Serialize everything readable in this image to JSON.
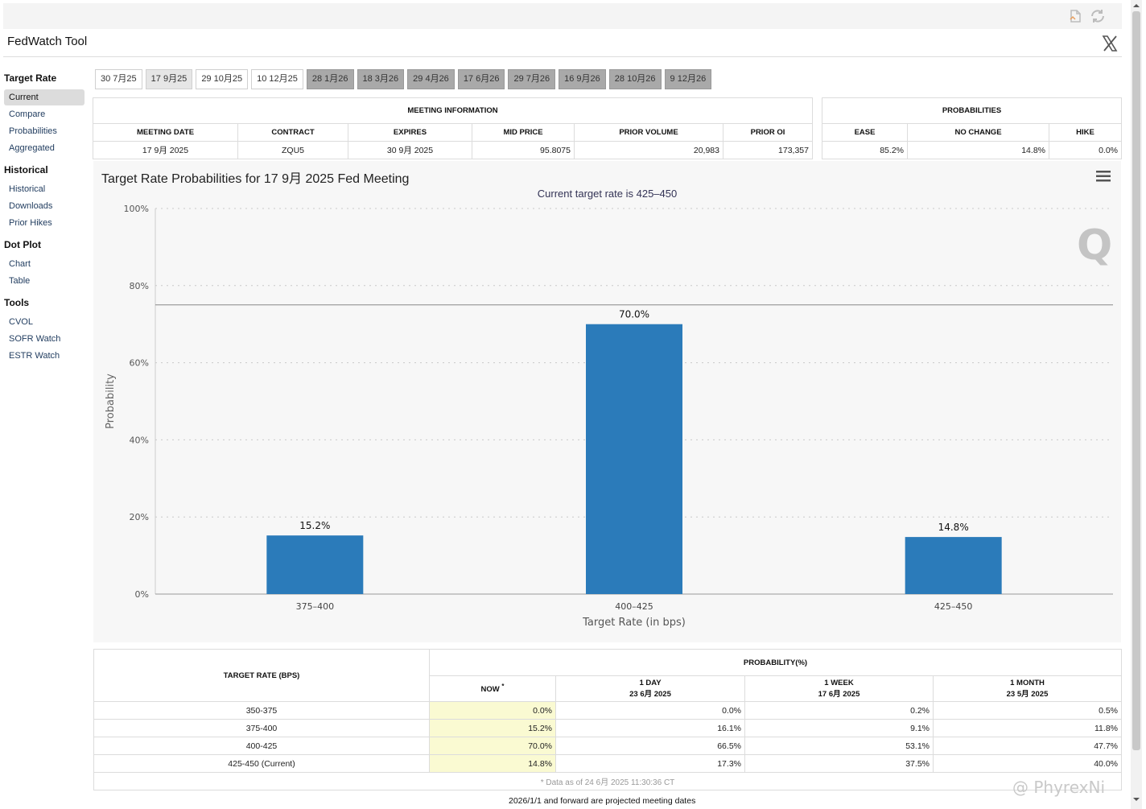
{
  "app": {
    "title": "FedWatch Tool"
  },
  "sidebar": {
    "groups": [
      {
        "title": "Target Rate",
        "items": [
          "Current",
          "Compare",
          "Probabilities",
          "Aggregated"
        ]
      },
      {
        "title": "Historical",
        "items": [
          "Historical",
          "Downloads",
          "Prior Hikes"
        ]
      },
      {
        "title": "Dot Plot",
        "items": [
          "Chart",
          "Table"
        ]
      },
      {
        "title": "Tools",
        "items": [
          "CVOL",
          "SOFR Watch",
          "ESTR Watch"
        ]
      }
    ],
    "active_item": "Current"
  },
  "meeting_tabs": [
    {
      "label": "30 7月25",
      "state": "normal"
    },
    {
      "label": "17 9月25",
      "state": "selected"
    },
    {
      "label": "29 10月25",
      "state": "normal"
    },
    {
      "label": "10 12月25",
      "state": "normal"
    },
    {
      "label": "28 1月26",
      "state": "future"
    },
    {
      "label": "18 3月26",
      "state": "future"
    },
    {
      "label": "29 4月26",
      "state": "future"
    },
    {
      "label": "17 6月26",
      "state": "future"
    },
    {
      "label": "29 7月26",
      "state": "future"
    },
    {
      "label": "16 9月26",
      "state": "future"
    },
    {
      "label": "28 10月26",
      "state": "future"
    },
    {
      "label": "9 12月26",
      "state": "future"
    }
  ],
  "meeting_info": {
    "caption": "MEETING INFORMATION",
    "headers": [
      "MEETING DATE",
      "CONTRACT",
      "EXPIRES",
      "MID PRICE",
      "PRIOR VOLUME",
      "PRIOR OI"
    ],
    "row": [
      "17 9月 2025",
      "ZQU5",
      "30 9月 2025",
      "95.8075",
      "20,983",
      "173,357"
    ]
  },
  "probabilities": {
    "caption": "PROBABILITIES",
    "headers": [
      "EASE",
      "NO CHANGE",
      "HIKE"
    ],
    "row": [
      "85.2%",
      "14.8%",
      "0.0%"
    ]
  },
  "chart": {
    "title": "Target Rate Probabilities for 17 9月 2025 Fed Meeting",
    "subtitle": "Current target rate is 425–450",
    "menu_icon": "hamburger-menu-icon",
    "bar_color": "#2b7bba"
  },
  "chart_data": {
    "type": "bar",
    "title": "Target Rate Probabilities for 17 9月 2025 Fed Meeting",
    "subtitle": "Current target rate is 425–450",
    "categories": [
      "375–400",
      "400–425",
      "425–450"
    ],
    "values": [
      15.2,
      70.0,
      14.8
    ],
    "data_labels": [
      "15.2%",
      "70.0%",
      "14.8%"
    ],
    "xlabel": "Target Rate (in bps)",
    "ylabel": "Probability",
    "ylim": [
      0,
      100
    ],
    "yticks": [
      "0%",
      "20%",
      "40%",
      "60%",
      "80%",
      "100%"
    ],
    "reference_line": 75,
    "grid": true,
    "legend": "none"
  },
  "prob_table": {
    "col_target": "TARGET RATE (BPS)",
    "col_group": "PROBABILITY(%)",
    "col_now": "NOW",
    "col_now_mark": "*",
    "col_1day": "1 DAY",
    "col_1day_date": "23 6月 2025",
    "col_1week": "1 WEEK",
    "col_1week_date": "17 6月 2025",
    "col_1month": "1 MONTH",
    "col_1month_date": "23 5月 2025",
    "rows": [
      [
        "350-375",
        "0.0%",
        "0.0%",
        "0.2%",
        "0.5%"
      ],
      [
        "375-400",
        "15.2%",
        "16.1%",
        "9.1%",
        "11.8%"
      ],
      [
        "400-425",
        "70.0%",
        "66.5%",
        "53.1%",
        "47.7%"
      ],
      [
        "425-450 (Current)",
        "14.8%",
        "17.3%",
        "37.5%",
        "40.0%"
      ]
    ],
    "note": "* Data as of 24 6月 2025 11:30:36 CT"
  },
  "footnote": "2026/1/1 and forward are projected meeting dates",
  "watermark": "@ PhyrexNi"
}
